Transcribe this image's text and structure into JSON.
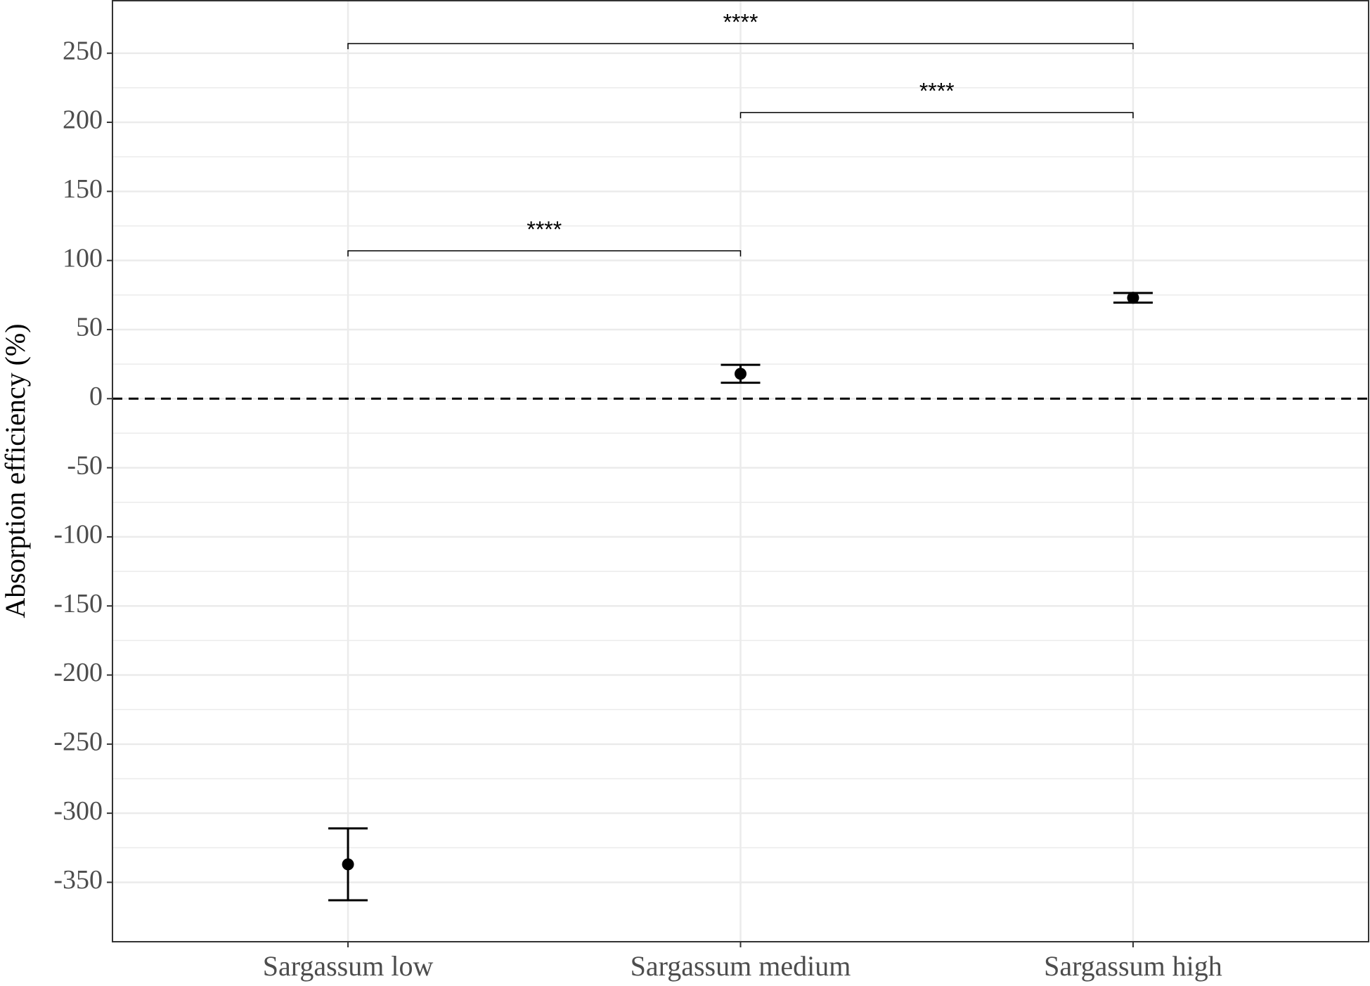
{
  "chart_data": {
    "type": "errorpoint",
    "y_label": "Absorption efficiency (%)",
    "categories": [
      "Sargassum low",
      "Sargassum medium",
      "Sargassum high"
    ],
    "values": [
      -337,
      18,
      73
    ],
    "errors": [
      26,
      6.5,
      3.5
    ],
    "color": "#000000",
    "ylim": [
      -393,
      288
    ],
    "yticks": [
      -350,
      -300,
      -250,
      -200,
      -150,
      -100,
      -50,
      0,
      50,
      100,
      150,
      200,
      250
    ],
    "grid": true,
    "reference_line": 0,
    "brackets": [
      {
        "from": 0,
        "to": 1,
        "y": 107,
        "label": "****"
      },
      {
        "from": 1,
        "to": 2,
        "y": 207,
        "label": "****"
      },
      {
        "from": 0,
        "to": 2,
        "y": 257,
        "label": "****"
      }
    ]
  }
}
